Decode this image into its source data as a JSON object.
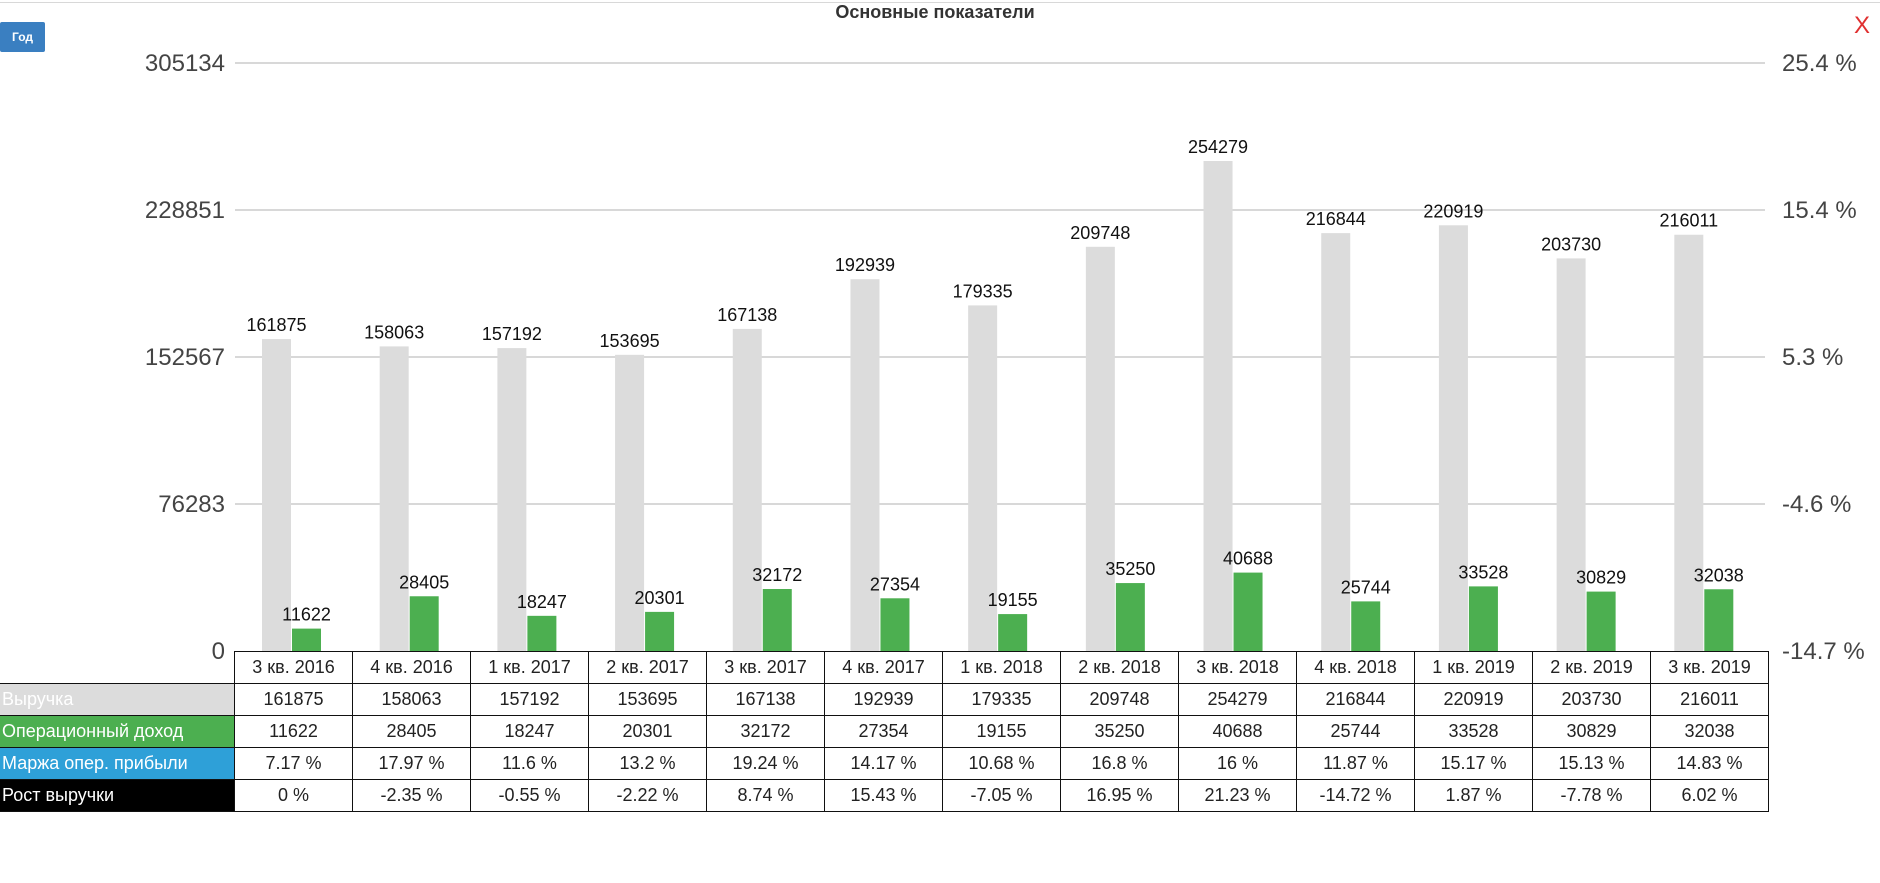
{
  "header": {
    "title": "Основные показатели",
    "period_button": "Год",
    "close_label": "X"
  },
  "colors": {
    "revenue": "#dcdcdc",
    "op_income": "#4caf50",
    "margin": "#2ea0d8",
    "growth": "#000000",
    "grid": "#cccccc"
  },
  "chart_data": {
    "type": "bar",
    "title": "Основные показатели",
    "categories": [
      "3 кв. 2016",
      "4 кв. 2016",
      "1 кв. 2017",
      "2 кв. 2017",
      "3 кв. 2017",
      "4 кв. 2017",
      "1 кв. 2018",
      "2 кв. 2018",
      "3 кв. 2018",
      "4 кв. 2018",
      "1 кв. 2019",
      "2 кв. 2019",
      "3 кв. 2019"
    ],
    "series": [
      {
        "name": "Выручка",
        "values": [
          161875,
          158063,
          157192,
          153695,
          167138,
          192939,
          179335,
          209748,
          254279,
          216844,
          220919,
          203730,
          216011
        ]
      },
      {
        "name": "Операционный доход",
        "values": [
          11622,
          28405,
          18247,
          20301,
          32172,
          27354,
          19155,
          35250,
          40688,
          25744,
          33528,
          30829,
          32038
        ]
      }
    ],
    "ylim": [
      0,
      305134
    ],
    "yticks": [
      "0",
      "76283",
      "152567",
      "228851",
      "305134"
    ],
    "y2ticks": [
      "-14.7 %",
      "-4.6 %",
      "5.3 %",
      "15.4 %",
      "25.4 %"
    ],
    "grid": true
  },
  "table": {
    "rows": [
      {
        "label": "Выручка",
        "values": [
          "161875",
          "158063",
          "157192",
          "153695",
          "167138",
          "192939",
          "179335",
          "209748",
          "254279",
          "216844",
          "220919",
          "203730",
          "216011"
        ]
      },
      {
        "label": "Операционный доход",
        "values": [
          "11622",
          "28405",
          "18247",
          "20301",
          "32172",
          "27354",
          "19155",
          "35250",
          "40688",
          "25744",
          "33528",
          "30829",
          "32038"
        ]
      },
      {
        "label": "Маржа опер. прибыли",
        "values": [
          "7.17 %",
          "17.97 %",
          "11.6 %",
          "13.2 %",
          "19.24 %",
          "14.17 %",
          "10.68 %",
          "16.8 %",
          "16 %",
          "11.87 %",
          "15.17 %",
          "15.13 %",
          "14.83 %"
        ]
      },
      {
        "label": "Рост выручки",
        "values": [
          "0 %",
          "-2.35 %",
          "-0.55 %",
          "-2.22 %",
          "8.74 %",
          "15.43 %",
          "-7.05 %",
          "16.95 %",
          "21.23 %",
          "-14.72 %",
          "1.87 %",
          "-7.78 %",
          "6.02 %"
        ]
      }
    ]
  }
}
